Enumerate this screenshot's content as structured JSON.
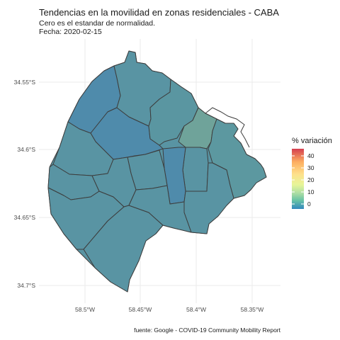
{
  "title": "Tendencias en la movilidad en zonas residenciales - CABA",
  "subtitle": "Cero es el estandar de normalidad.",
  "date_line": "Fecha: 2020-02-15",
  "caption": "fuente: Google - COVID-19 Community Mobility Report",
  "legend": {
    "title": "% variación",
    "ticks": [
      "40",
      "30",
      "20",
      "10",
      "0"
    ],
    "colors": [
      "#d53e4f",
      "#fdae61",
      "#fee08b",
      "#e6f598",
      "#abdda4",
      "#66c2a5",
      "#3288bd"
    ]
  },
  "axes": {
    "y_ticks": [
      "34.55°S",
      "34.6°S",
      "34.65°S",
      "34.7°S"
    ],
    "x_ticks": [
      "58.5°W",
      "58.45°W",
      "58.4°W",
      "58.35°W"
    ]
  },
  "colors": {
    "dominant": "#5994a3",
    "lowest": "#4f8bab",
    "highest": "#6fa39a",
    "border": "#3d3d3d"
  }
}
